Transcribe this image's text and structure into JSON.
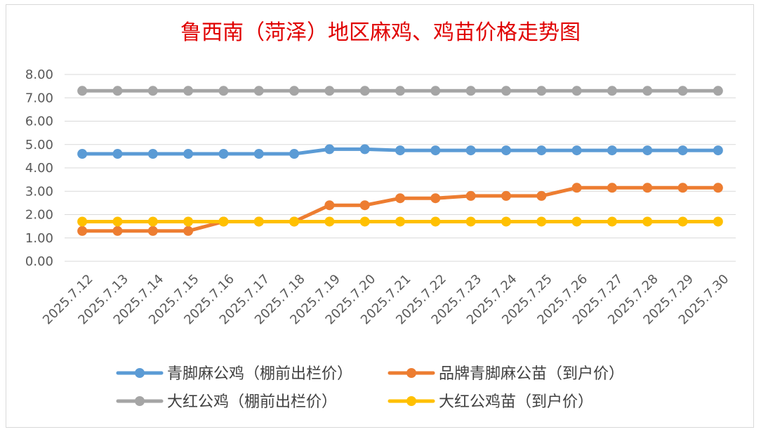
{
  "chart_data": {
    "type": "line",
    "title": "鲁西南（菏泽）地区麻鸡、鸡苗价格走势图",
    "xlabel": "",
    "ylabel": "",
    "ylim": [
      0,
      8
    ],
    "y_ticks": [
      "0.00",
      "1.00",
      "2.00",
      "3.00",
      "4.00",
      "5.00",
      "6.00",
      "7.00",
      "8.00"
    ],
    "grid": true,
    "legend_position": "bottom",
    "categories": [
      "2025.7.12",
      "2025.7.13",
      "2025.7.14",
      "2025.7.15",
      "2025.7.16",
      "2025.7.17",
      "2025.7.18",
      "2025.7.19",
      "2025.7.20",
      "2025.7.21",
      "2025.7.22",
      "2025.7.23",
      "2025.7.24",
      "2025.7.25",
      "2025.7.26",
      "2025.7.27",
      "2025.7.28",
      "2025.7.29",
      "2025.7.30"
    ],
    "series": [
      {
        "name": "青脚麻公鸡（棚前出栏价）",
        "color": "#5b9bd5",
        "values": [
          4.6,
          4.6,
          4.6,
          4.6,
          4.6,
          4.6,
          4.6,
          4.8,
          4.8,
          4.75,
          4.75,
          4.75,
          4.75,
          4.75,
          4.75,
          4.75,
          4.75,
          4.75,
          4.75
        ]
      },
      {
        "name": "品牌青脚麻公苗（到户价）",
        "color": "#ed7d31",
        "values": [
          1.3,
          1.3,
          1.3,
          1.3,
          1.7,
          1.7,
          1.7,
          2.4,
          2.4,
          2.7,
          2.7,
          2.8,
          2.8,
          2.8,
          3.15,
          3.15,
          3.15,
          3.15,
          3.15
        ]
      },
      {
        "name": "大红公鸡（棚前出栏价）",
        "color": "#a5a5a5",
        "values": [
          7.3,
          7.3,
          7.3,
          7.3,
          7.3,
          7.3,
          7.3,
          7.3,
          7.3,
          7.3,
          7.3,
          7.3,
          7.3,
          7.3,
          7.3,
          7.3,
          7.3,
          7.3,
          7.3
        ]
      },
      {
        "name": "大红公鸡苗（到户价）",
        "color": "#ffc000",
        "values": [
          1.7,
          1.7,
          1.7,
          1.7,
          1.7,
          1.7,
          1.7,
          1.7,
          1.7,
          1.7,
          1.7,
          1.7,
          1.7,
          1.7,
          1.7,
          1.7,
          1.7,
          1.7,
          1.7
        ]
      }
    ]
  }
}
